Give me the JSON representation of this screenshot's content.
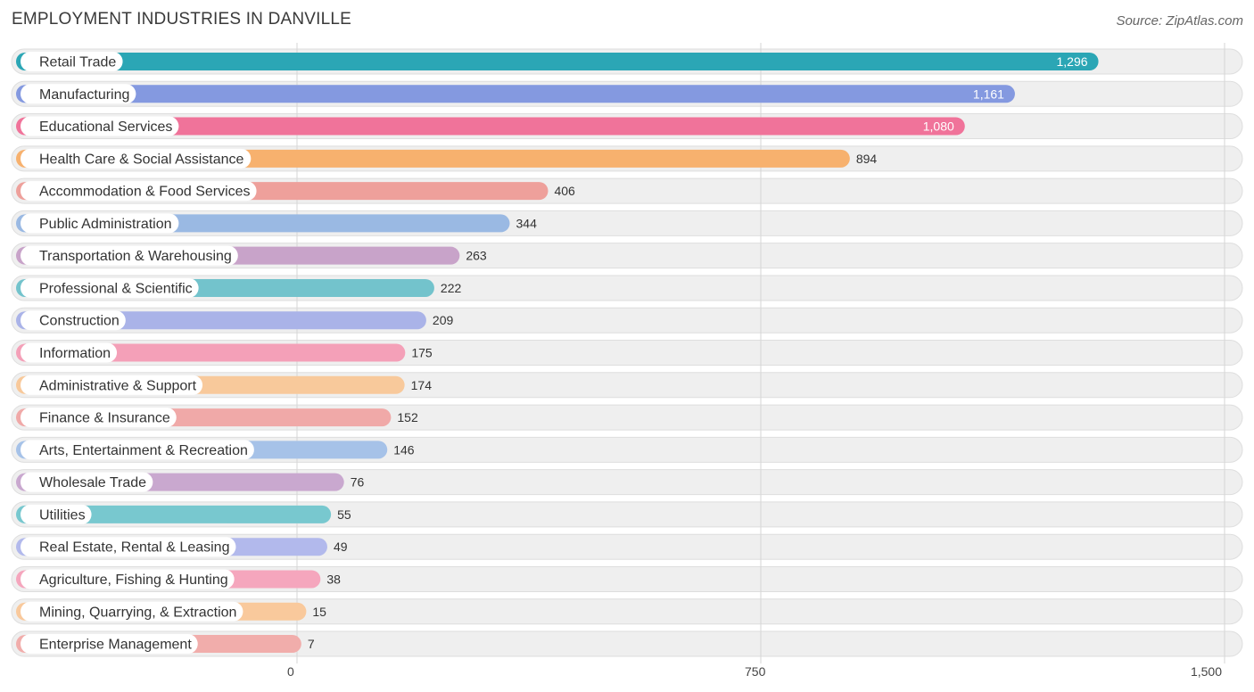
{
  "header": {
    "title": "EMPLOYMENT INDUSTRIES IN DANVILLE",
    "source": "Source: ZipAtlas.com"
  },
  "chart_data": {
    "type": "bar",
    "orientation": "horizontal",
    "title": "EMPLOYMENT INDUSTRIES IN DANVILLE",
    "xlabel": "",
    "ylabel": "",
    "xlim": [
      0,
      1500
    ],
    "ticks": [
      0,
      750,
      1500
    ],
    "tick_labels": [
      "0",
      "750",
      "1,500"
    ],
    "grid": true,
    "categories": [
      "Retail Trade",
      "Manufacturing",
      "Educational Services",
      "Health Care & Social Assistance",
      "Accommodation & Food Services",
      "Public Administration",
      "Transportation & Warehousing",
      "Professional & Scientific",
      "Construction",
      "Information",
      "Administrative & Support",
      "Finance & Insurance",
      "Arts, Entertainment & Recreation",
      "Wholesale Trade",
      "Utilities",
      "Real Estate, Rental & Leasing",
      "Agriculture, Fishing & Hunting",
      "Mining, Quarrying, & Extraction",
      "Enterprise Management"
    ],
    "values": [
      1296,
      1161,
      1080,
      894,
      406,
      344,
      263,
      222,
      209,
      175,
      174,
      152,
      146,
      76,
      55,
      49,
      38,
      15,
      7
    ],
    "value_labels": [
      "1,296",
      "1,161",
      "1,080",
      "894",
      "406",
      "344",
      "263",
      "222",
      "209",
      "175",
      "174",
      "152",
      "146",
      "76",
      "55",
      "49",
      "38",
      "15",
      "7"
    ],
    "colors": [
      "#2ba6b5",
      "#8499e0",
      "#f0739a",
      "#f7b16e",
      "#eea09b",
      "#9ab9e3",
      "#c8a3c9",
      "#73c3cc",
      "#aab3e8",
      "#f4a0b8",
      "#f8c99b",
      "#f0a9a8",
      "#a6c2e8",
      "#c9a8cf",
      "#78c8cf",
      "#b2b9ec",
      "#f5a6bd",
      "#f9c99c",
      "#f1adab"
    ]
  }
}
